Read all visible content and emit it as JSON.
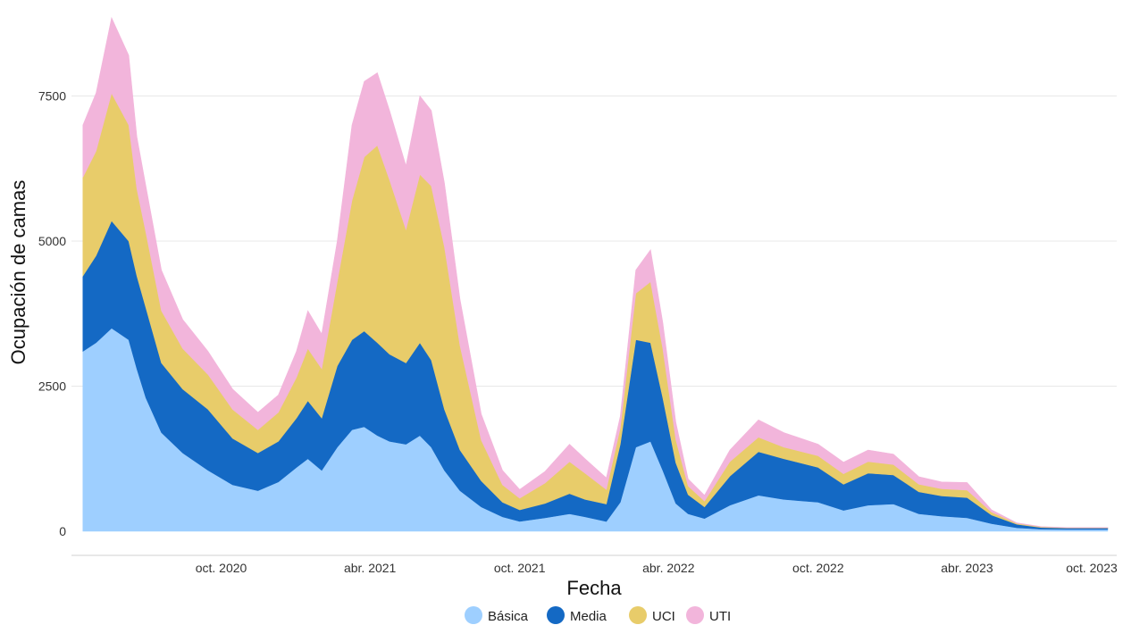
{
  "chart_data": {
    "type": "area",
    "stacked": true,
    "xlabel": "Fecha",
    "ylabel": "Ocupación de camas",
    "ylim": [
      0,
      9000
    ],
    "xlim": [
      "2020-04-01",
      "2023-10-01"
    ],
    "yticks": [
      {
        "value": 0,
        "label": "0"
      },
      {
        "value": 2500,
        "label": "2500"
      },
      {
        "value": 5000,
        "label": "5000"
      },
      {
        "value": 7500,
        "label": "7500"
      }
    ],
    "xticks": [
      {
        "date": "2020-10-01",
        "label": "oct. 2020"
      },
      {
        "date": "2021-04-01",
        "label": "abr. 2021"
      },
      {
        "date": "2021-10-01",
        "label": "oct. 2021"
      },
      {
        "date": "2022-04-01",
        "label": "abr. 2022"
      },
      {
        "date": "2022-10-01",
        "label": "oct. 2022"
      },
      {
        "date": "2023-04-01",
        "label": "abr. 2023"
      },
      {
        "date": "2023-10-01",
        "label": "oct. 2023"
      }
    ],
    "grid": true,
    "legend_position": "bottom",
    "dates": [
      "2020-04-15",
      "2020-05-01",
      "2020-05-20",
      "2020-06-10",
      "2020-06-20",
      "2020-07-01",
      "2020-07-20",
      "2020-08-15",
      "2020-09-15",
      "2020-10-15",
      "2020-11-15",
      "2020-12-10",
      "2021-01-01",
      "2021-01-15",
      "2021-02-01",
      "2021-02-20",
      "2021-03-10",
      "2021-03-25",
      "2021-04-10",
      "2021-04-25",
      "2021-05-15",
      "2021-06-01",
      "2021-06-15",
      "2021-07-01",
      "2021-07-20",
      "2021-08-15",
      "2021-09-10",
      "2021-10-01",
      "2021-11-01",
      "2021-12-01",
      "2021-12-20",
      "2022-01-15",
      "2022-02-01",
      "2022-02-20",
      "2022-03-10",
      "2022-03-25",
      "2022-04-10",
      "2022-04-25",
      "2022-05-15",
      "2022-06-15",
      "2022-07-20",
      "2022-08-20",
      "2022-10-01",
      "2022-11-01",
      "2022-12-01",
      "2023-01-01",
      "2023-02-01",
      "2023-03-01",
      "2023-04-01",
      "2023-05-01",
      "2023-06-01",
      "2023-07-01",
      "2023-08-01",
      "2023-09-20"
    ],
    "series": [
      {
        "name": "Básica",
        "color": "#9ecfff",
        "values": [
          3100,
          3250,
          3500,
          3300,
          2800,
          2300,
          1700,
          1350,
          1050,
          800,
          700,
          850,
          1100,
          1250,
          1050,
          1450,
          1750,
          1800,
          1650,
          1550,
          1500,
          1650,
          1450,
          1050,
          700,
          420,
          250,
          170,
          230,
          300,
          250,
          170,
          500,
          1450,
          1550,
          1050,
          480,
          300,
          220,
          450,
          620,
          550,
          500,
          360,
          450,
          470,
          300,
          260,
          230,
          130,
          60,
          35,
          30,
          30
        ]
      },
      {
        "name": "Media",
        "color": "#1469c4",
        "values": [
          1300,
          1500,
          1850,
          1700,
          1600,
          1550,
          1200,
          1100,
          1050,
          800,
          650,
          700,
          850,
          1000,
          900,
          1400,
          1550,
          1650,
          1600,
          1500,
          1400,
          1600,
          1500,
          1050,
          700,
          450,
          250,
          200,
          250,
          350,
          300,
          300,
          1000,
          1850,
          1700,
          1250,
          700,
          330,
          200,
          500,
          750,
          700,
          600,
          450,
          550,
          500,
          380,
          350,
          350,
          150,
          60,
          30,
          25,
          25
        ]
      },
      {
        "name": "UCI",
        "color": "#e8cc6a",
        "values": [
          1700,
          1800,
          2200,
          2000,
          1500,
          1300,
          900,
          700,
          600,
          500,
          400,
          500,
          700,
          900,
          850,
          1450,
          2400,
          3000,
          3400,
          3000,
          2300,
          2900,
          3000,
          2800,
          1800,
          700,
          300,
          200,
          350,
          550,
          450,
          250,
          280,
          800,
          1050,
          850,
          400,
          150,
          100,
          250,
          250,
          200,
          200,
          180,
          200,
          180,
          130,
          120,
          130,
          50,
          15,
          10,
          5,
          5
        ]
      },
      {
        "name": "UTI",
        "color": "#f2b5db",
        "values": [
          900,
          1000,
          1300,
          1200,
          900,
          800,
          700,
          500,
          400,
          350,
          300,
          300,
          450,
          650,
          600,
          700,
          1300,
          1300,
          1250,
          1200,
          1100,
          1350,
          1300,
          1100,
          800,
          450,
          250,
          150,
          200,
          300,
          250,
          200,
          200,
          400,
          550,
          450,
          300,
          120,
          100,
          200,
          300,
          250,
          200,
          200,
          200,
          180,
          130,
          120,
          130,
          40,
          10,
          5,
          5,
          5
        ]
      }
    ]
  }
}
